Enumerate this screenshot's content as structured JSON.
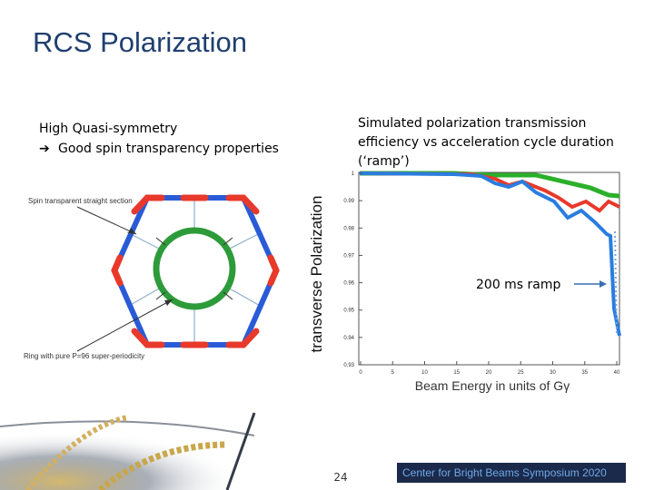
{
  "slide": {
    "title": "RCS Polarization",
    "left_text": [
      "High Quasi-symmetry",
      "Good spin transparency properties"
    ],
    "right_text": [
      "Simulated polarization transmission",
      "efficiency vs acceleration cycle duration",
      "(‘ramp’)"
    ],
    "diagram": {
      "label_top": "Spin transparent straight section",
      "label_bottom": "Ring with pure P=96 super-periodicity"
    },
    "plot": {
      "y_axis_label_1": "transverse",
      "y_axis_label_2": "Polarization",
      "x_axis_label": "Beam Energy in units of Gγ",
      "yticks": [
        "1",
        "0.99",
        "0.98",
        "0.97",
        "0.96",
        "0.95",
        "0.94",
        "0.93"
      ],
      "xticks": [
        "0",
        "5",
        "10",
        "15",
        "20",
        "25",
        "30",
        "35",
        "40"
      ],
      "annotation": "200 ms ramp"
    },
    "page_number": "24",
    "footer": "Center for Bright Beams Symposium 2020"
  }
}
